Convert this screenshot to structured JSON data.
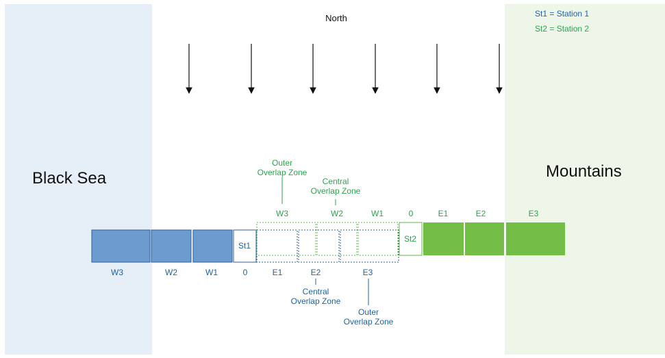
{
  "colors": {
    "sea_region": "#e6eef7",
    "mountain_region": "#eef6ea",
    "station1_blue": "#6c9bcf",
    "station1_stroke": "#2f5f96",
    "station1_text": "#1f63a8",
    "station2_green": "#73bf45",
    "station2_text": "#2aa54e",
    "arrow": "#111111"
  },
  "regions": {
    "left_label": "Black Sea",
    "right_label": "Mountains",
    "top_label": "North"
  },
  "legend": {
    "st1": "St1 = Station 1",
    "st2": "St2 = Station 2"
  },
  "station1": {
    "box_label": "St1",
    "cells": [
      "W3",
      "W2",
      "W1",
      "0",
      "E1",
      "E2",
      "E3"
    ],
    "central_zone": [
      "Central",
      "Overlap Zone"
    ],
    "outer_zone": [
      "Outer",
      "Overlap Zone"
    ]
  },
  "station2": {
    "box_label": "St2",
    "cells": [
      "W3",
      "W2",
      "W1",
      "0",
      "E1",
      "E2",
      "E3"
    ],
    "central_zone": [
      "Central",
      "Overlap Zone"
    ],
    "outer_zone": [
      "Outer",
      "Overlap Zone"
    ]
  }
}
